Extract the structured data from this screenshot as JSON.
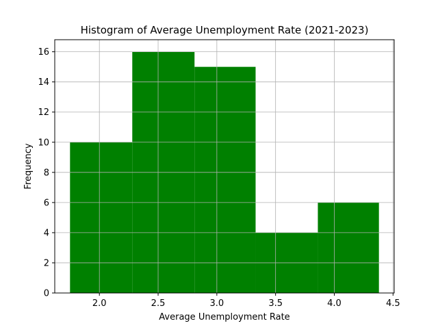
{
  "chart_data": {
    "type": "bar",
    "title": "Histogram of Average Unemployment Rate (2021-2023)",
    "xlabel": "Average Unemployment Rate",
    "ylabel": "Frequency",
    "bins": [
      {
        "start": 1.75,
        "end": 2.28,
        "count": 10
      },
      {
        "start": 2.28,
        "end": 2.81,
        "count": 16
      },
      {
        "start": 2.81,
        "end": 3.33,
        "count": 15
      },
      {
        "start": 3.33,
        "end": 3.86,
        "count": 4
      },
      {
        "start": 3.86,
        "end": 4.38,
        "count": 6
      }
    ],
    "xlim": [
      1.62,
      4.51
    ],
    "ylim": [
      0,
      16.8
    ],
    "xticks": [
      2.0,
      2.5,
      3.0,
      3.5,
      4.0,
      4.5
    ],
    "xtick_labels": [
      "2.0",
      "2.5",
      "3.0",
      "3.5",
      "4.0",
      "4.5"
    ],
    "yticks": [
      0,
      2,
      4,
      6,
      8,
      10,
      12,
      14,
      16
    ],
    "ytick_labels": [
      "0",
      "2",
      "4",
      "6",
      "8",
      "10",
      "12",
      "14",
      "16"
    ],
    "grid": true,
    "bar_color": "#008000",
    "grid_color": "#b0b0b0"
  }
}
